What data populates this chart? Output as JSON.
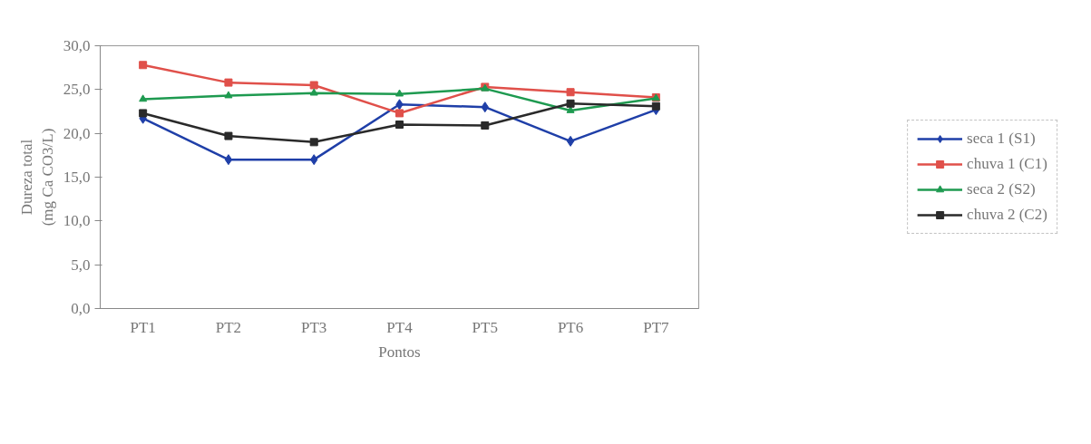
{
  "chart_data": {
    "type": "line",
    "xlabel": "Pontos",
    "ylabel": "Dureza total\n(mg Ca CO3/L)",
    "categories": [
      "PT1",
      "PT2",
      "PT3",
      "PT4",
      "PT5",
      "PT6",
      "PT7"
    ],
    "ylim": [
      0,
      30
    ],
    "yticks": [
      {
        "value": 0,
        "label": "0,0"
      },
      {
        "value": 5,
        "label": "5,0"
      },
      {
        "value": 10,
        "label": "10,0"
      },
      {
        "value": 15,
        "label": "15,0"
      },
      {
        "value": 20,
        "label": "20,0"
      },
      {
        "value": 25,
        "label": "25,0"
      },
      {
        "value": 30,
        "label": "30,0"
      }
    ],
    "grid": false,
    "legend": "right",
    "series": [
      {
        "name": "seca 1 (S1)",
        "color": "#1f3fa8",
        "marker": "diamond",
        "values": [
          21.7,
          17.0,
          17.0,
          23.3,
          23.0,
          19.1,
          22.7
        ]
      },
      {
        "name": "chuva 1 (C1)",
        "color": "#e0504a",
        "marker": "square",
        "values": [
          27.8,
          25.8,
          25.5,
          22.3,
          25.3,
          24.7,
          24.1
        ]
      },
      {
        "name": "seca 2 (S2)",
        "color": "#1e9a50",
        "marker": "triangle",
        "values": [
          23.9,
          24.3,
          24.6,
          24.5,
          25.1,
          22.6,
          24.0
        ]
      },
      {
        "name": "chuva 2 (C2)",
        "color": "#2a2a2a",
        "marker": "square",
        "values": [
          22.3,
          19.7,
          19.0,
          21.0,
          20.9,
          23.4,
          23.1
        ]
      }
    ]
  }
}
